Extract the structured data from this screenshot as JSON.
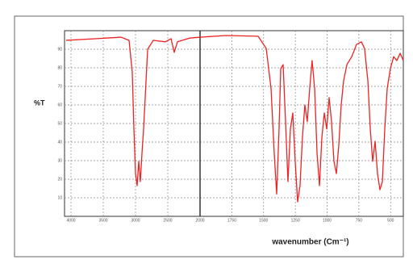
{
  "chart_data": {
    "type": "line",
    "y_label": "%T",
    "x_label": "wavenumber (Cm⁻¹)",
    "x_break": 2000,
    "xlim": [
      4100,
      400
    ],
    "ylim": [
      0,
      100
    ],
    "xticks": [
      4000,
      3500,
      3000,
      2500,
      2000,
      1750,
      1500,
      1250,
      1000,
      750,
      500
    ],
    "yticks": [
      10,
      20,
      30,
      40,
      50,
      60,
      70,
      80,
      90
    ],
    "grid": true,
    "series": [
      {
        "color": "#ee2222",
        "x": [
          4075,
          3600,
          3225,
          3100,
          3050,
          3025,
          3000,
          2975,
          2950,
          2925,
          2900,
          2875,
          2850,
          2812,
          2725,
          2538,
          2450,
          2400,
          2350,
          2162,
          2000,
          1797,
          1543,
          1479,
          1441,
          1416,
          1397,
          1378,
          1365,
          1346,
          1327,
          1308,
          1289,
          1270,
          1251,
          1232,
          1213,
          1194,
          1175,
          1156,
          1137,
          1118,
          1098,
          1079,
          1060,
          1041,
          1022,
          1003,
          984,
          965,
          946,
          927,
          908,
          889,
          870,
          844,
          806,
          768,
          730,
          705,
          679,
          660,
          641,
          622,
          603,
          584,
          565,
          546,
          527,
          502,
          476,
          451,
          425,
          400
        ],
        "values": [
          94.8,
          95.7,
          96.5,
          94.8,
          77.4,
          47,
          23,
          16.5,
          29.6,
          18.7,
          33.9,
          47,
          64,
          90,
          94.8,
          94,
          95.7,
          88.3,
          94,
          96,
          96.5,
          97.4,
          97,
          90.4,
          68.7,
          33.9,
          12,
          47,
          79.6,
          81.7,
          51,
          18.7,
          47,
          55.7,
          29.6,
          7.8,
          16.5,
          42.6,
          60,
          51,
          68.7,
          83.9,
          68.7,
          33.9,
          16.5,
          42.6,
          55.7,
          47,
          64,
          51,
          29.6,
          23,
          38.3,
          60,
          73,
          81.7,
          86,
          92.6,
          94,
          90.4,
          73,
          47,
          29.6,
          40.4,
          23,
          14.3,
          18.7,
          47,
          68.7,
          79.6,
          86,
          83.9,
          87.8,
          83.9
        ]
      }
    ]
  }
}
